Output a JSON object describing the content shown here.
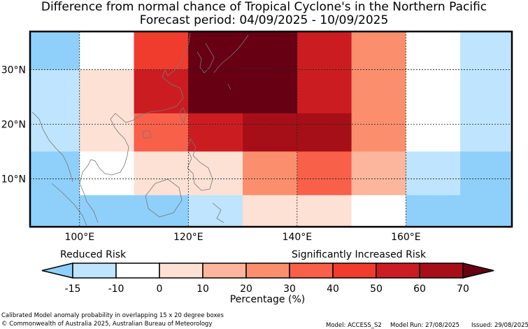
{
  "title": {
    "line1": "Difference from normal chance of Tropical Cyclone's in the Northern Pacific",
    "line2": "Forecast period: 04/09/2025 - 10/09/2025"
  },
  "map": {
    "lon_ticks": [
      "100°E",
      "120°E",
      "140°E",
      "160°E"
    ],
    "lat_ticks": [
      "30°N",
      "20°N",
      "10°N"
    ],
    "grid_cells": [
      {
        "lon_from": 90,
        "lon_to": 100,
        "lat_from": 30,
        "lat_to": 37,
        "color": "#8fd0fb"
      },
      {
        "lon_from": 100,
        "lon_to": 110,
        "lat_from": 30,
        "lat_to": 37,
        "color": "#ffffff"
      },
      {
        "lon_from": 110,
        "lon_to": 120,
        "lat_from": 30,
        "lat_to": 37,
        "color": "#f03c2d"
      },
      {
        "lon_from": 120,
        "lon_to": 140,
        "lat_from": 30,
        "lat_to": 37,
        "color": "#670012"
      },
      {
        "lon_from": 140,
        "lon_to": 150,
        "lat_from": 30,
        "lat_to": 37,
        "color": "#cb1d21"
      },
      {
        "lon_from": 150,
        "lon_to": 160,
        "lat_from": 30,
        "lat_to": 37,
        "color": "#fb8f6d"
      },
      {
        "lon_from": 160,
        "lon_to": 170,
        "lat_from": 30,
        "lat_to": 37,
        "color": "#ffffff"
      },
      {
        "lon_from": 170,
        "lon_to": 180,
        "lat_from": 30,
        "lat_to": 37,
        "color": "#bfe4fd"
      },
      {
        "lon_from": 90,
        "lon_to": 100,
        "lat_from": 22,
        "lat_to": 30,
        "color": "#bfe4fd"
      },
      {
        "lon_from": 100,
        "lon_to": 110,
        "lat_from": 22,
        "lat_to": 30,
        "color": "#fee1d5"
      },
      {
        "lon_from": 110,
        "lon_to": 120,
        "lat_from": 22,
        "lat_to": 30,
        "color": "#cb1d21"
      },
      {
        "lon_from": 120,
        "lon_to": 140,
        "lat_from": 22,
        "lat_to": 30,
        "color": "#670012"
      },
      {
        "lon_from": 140,
        "lon_to": 150,
        "lat_from": 22,
        "lat_to": 30,
        "color": "#cb1d21"
      },
      {
        "lon_from": 150,
        "lon_to": 160,
        "lat_from": 22,
        "lat_to": 30,
        "color": "#fb8f6d"
      },
      {
        "lon_from": 160,
        "lon_to": 170,
        "lat_from": 22,
        "lat_to": 30,
        "color": "#ffffff"
      },
      {
        "lon_from": 170,
        "lon_to": 180,
        "lat_from": 22,
        "lat_to": 30,
        "color": "#bfe4fd"
      },
      {
        "lon_from": 90,
        "lon_to": 100,
        "lat_from": 15,
        "lat_to": 22,
        "color": "#bfe4fd"
      },
      {
        "lon_from": 100,
        "lon_to": 110,
        "lat_from": 15,
        "lat_to": 22,
        "color": "#fee1d5"
      },
      {
        "lon_from": 110,
        "lon_to": 120,
        "lat_from": 15,
        "lat_to": 22,
        "color": "#f8604a"
      },
      {
        "lon_from": 120,
        "lon_to": 130,
        "lat_from": 15,
        "lat_to": 22,
        "color": "#cb1d21"
      },
      {
        "lon_from": 130,
        "lon_to": 150,
        "lat_from": 15,
        "lat_to": 22,
        "color": "#a60f18"
      },
      {
        "lon_from": 150,
        "lon_to": 160,
        "lat_from": 15,
        "lat_to": 22,
        "color": "#fb8f6d"
      },
      {
        "lon_from": 160,
        "lon_to": 170,
        "lat_from": 15,
        "lat_to": 22,
        "color": "#ffffff"
      },
      {
        "lon_from": 170,
        "lon_to": 180,
        "lat_from": 15,
        "lat_to": 22,
        "color": "#bfe4fd"
      },
      {
        "lon_from": 90,
        "lon_to": 100,
        "lat_from": 7,
        "lat_to": 15,
        "color": "#8fd0fb"
      },
      {
        "lon_from": 100,
        "lon_to": 110,
        "lat_from": 7,
        "lat_to": 15,
        "color": "#ffffff"
      },
      {
        "lon_from": 110,
        "lon_to": 130,
        "lat_from": 7,
        "lat_to": 15,
        "color": "#fee1d5"
      },
      {
        "lon_from": 130,
        "lon_to": 140,
        "lat_from": 7,
        "lat_to": 15,
        "color": "#fb8f6d"
      },
      {
        "lon_from": 140,
        "lon_to": 150,
        "lat_from": 7,
        "lat_to": 15,
        "color": "#f8604a"
      },
      {
        "lon_from": 150,
        "lon_to": 160,
        "lat_from": 7,
        "lat_to": 15,
        "color": "#fcb69d"
      },
      {
        "lon_from": 160,
        "lon_to": 170,
        "lat_from": 7,
        "lat_to": 15,
        "color": "#bfe4fd"
      },
      {
        "lon_from": 170,
        "lon_to": 180,
        "lat_from": 7,
        "lat_to": 15,
        "color": "#8fd0fb"
      },
      {
        "lon_from": 90,
        "lon_to": 120,
        "lat_from": 1,
        "lat_to": 7,
        "color": "#8fd0fb"
      },
      {
        "lon_from": 120,
        "lon_to": 130,
        "lat_from": 1,
        "lat_to": 7,
        "color": "#bfe4fd"
      },
      {
        "lon_from": 130,
        "lon_to": 150,
        "lat_from": 1,
        "lat_to": 7,
        "color": "#fee1d5"
      },
      {
        "lon_from": 150,
        "lon_to": 160,
        "lat_from": 1,
        "lat_to": 7,
        "color": "#ffffff"
      },
      {
        "lon_from": 160,
        "lon_to": 180,
        "lat_from": 1,
        "lat_to": 7,
        "color": "#8fd0fb"
      }
    ],
    "gridline_lons": [
      100,
      120,
      140,
      160
    ],
    "gridline_lats": [
      30,
      20,
      10
    ]
  },
  "colorbar": {
    "label_left": "Reduced Risk",
    "label_right": "Significantly Increased Risk",
    "tick_labels": [
      "-15",
      "-10",
      "0",
      "10",
      "20",
      "30",
      "40",
      "50",
      "60",
      "70"
    ],
    "bins": [
      {
        "from": -15,
        "to": -10,
        "color": "#bfe4fd"
      },
      {
        "from": -10,
        "to": 0,
        "color": "#ffffff"
      },
      {
        "from": 0,
        "to": 10,
        "color": "#fee1d5"
      },
      {
        "from": 10,
        "to": 20,
        "color": "#fcb69d"
      },
      {
        "from": 20,
        "to": 30,
        "color": "#fb8f6d"
      },
      {
        "from": 30,
        "to": 40,
        "color": "#f8604a"
      },
      {
        "from": 40,
        "to": 50,
        "color": "#f03c2d"
      },
      {
        "from": 50,
        "to": 60,
        "color": "#cb1d21"
      },
      {
        "from": 60,
        "to": 70,
        "color": "#a60f18"
      }
    ],
    "under_color": "#8fd0fb",
    "over_color": "#670012",
    "xlabel": "Percentage (%)"
  },
  "footer": {
    "line1": "Calibrated Model anomaly probability in overlapping 15 x 20 degree boxes",
    "line2": "© Commonwealth of Australia 2025, Australian Bureau of Meteorology",
    "model": "Model: ACCESS_S2",
    "run": "Model Run: 27/08/2025",
    "issued": "Issued: 29/08/2025"
  }
}
